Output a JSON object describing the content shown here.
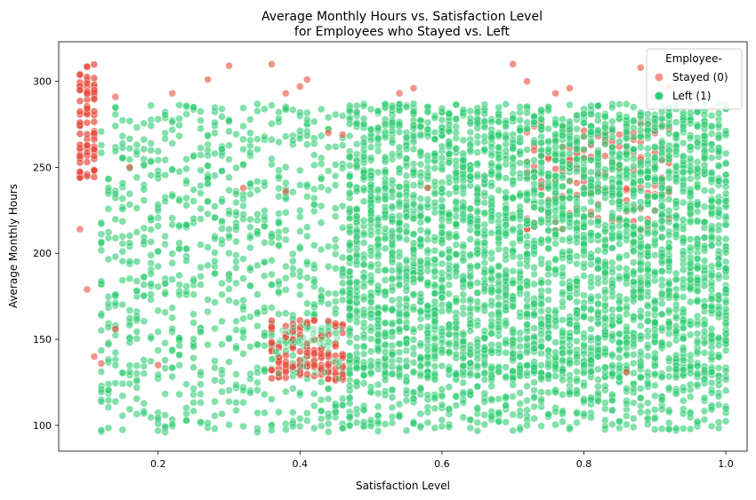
{
  "chart_data": {
    "type": "scatter",
    "title": "Average Monthly Hours vs. Satisfaction Level\nfor Employees who Stayed vs. Left",
    "xlabel": "Satisfaction Level",
    "ylabel": "Average Monthly Hours",
    "xlim": [
      0.06,
      1.03
    ],
    "ylim": [
      85,
      323
    ],
    "xticks": [
      0.2,
      0.4,
      0.6,
      0.8,
      1.0
    ],
    "xtick_labels": [
      "0.2",
      "0.4",
      "0.6",
      "0.8",
      "1.0"
    ],
    "yticks": [
      100,
      150,
      200,
      250,
      300
    ],
    "ytick_labels": [
      "100",
      "150",
      "200",
      "250",
      "300"
    ],
    "grid": false,
    "legend": {
      "title": "Employee-",
      "placement": "top-right",
      "entries": [
        "Stayed (0)",
        "Left (1)"
      ]
    },
    "colors": {
      "stayed": "#e74c3c",
      "left": "#2ecc71"
    },
    "series": [
      {
        "name": "Stayed (0)",
        "color": "#e74c3c",
        "clusters": [
          {
            "x_range": [
              0.09,
              0.11
            ],
            "y_range": [
              243,
              310
            ]
          },
          {
            "x_range": [
              0.36,
              0.46
            ],
            "y_range": [
              126,
              161
            ]
          },
          {
            "x_range": [
              0.72,
              0.92
            ],
            "y_range": [
              213,
              276
            ]
          }
        ],
        "points": [
          {
            "x": 0.09,
            "y": 214
          },
          {
            "x": 0.1,
            "y": 179
          },
          {
            "x": 0.11,
            "y": 140
          },
          {
            "x": 0.12,
            "y": 136
          },
          {
            "x": 0.14,
            "y": 291
          },
          {
            "x": 0.22,
            "y": 293
          },
          {
            "x": 0.27,
            "y": 301
          },
          {
            "x": 0.3,
            "y": 309
          },
          {
            "x": 0.36,
            "y": 310
          },
          {
            "x": 0.38,
            "y": 293
          },
          {
            "x": 0.4,
            "y": 297
          },
          {
            "x": 0.41,
            "y": 301
          },
          {
            "x": 0.54,
            "y": 293
          },
          {
            "x": 0.56,
            "y": 296
          },
          {
            "x": 0.7,
            "y": 310
          },
          {
            "x": 0.72,
            "y": 300
          },
          {
            "x": 0.76,
            "y": 293
          },
          {
            "x": 0.78,
            "y": 296
          },
          {
            "x": 0.88,
            "y": 308
          },
          {
            "x": 0.9,
            "y": 291
          },
          {
            "x": 0.92,
            "y": 297
          },
          {
            "x": 0.32,
            "y": 238
          },
          {
            "x": 0.38,
            "y": 236
          },
          {
            "x": 0.44,
            "y": 270
          },
          {
            "x": 0.46,
            "y": 269
          },
          {
            "x": 0.86,
            "y": 131
          },
          {
            "x": 0.16,
            "y": 250
          },
          {
            "x": 0.2,
            "y": 135
          },
          {
            "x": 0.14,
            "y": 156
          },
          {
            "x": 0.58,
            "y": 238
          }
        ]
      },
      {
        "name": "Left (1)",
        "color": "#2ecc71",
        "clusters": [
          {
            "x_range": [
              0.12,
              0.47
            ],
            "y_range": [
              96,
              287
            ]
          },
          {
            "x_range": [
              0.47,
              1.0
            ],
            "y_range": [
              128,
              287
            ]
          },
          {
            "x_range": [
              0.47,
              1.0
            ],
            "y_range": [
              96,
              135
            ]
          }
        ],
        "points": []
      }
    ]
  }
}
